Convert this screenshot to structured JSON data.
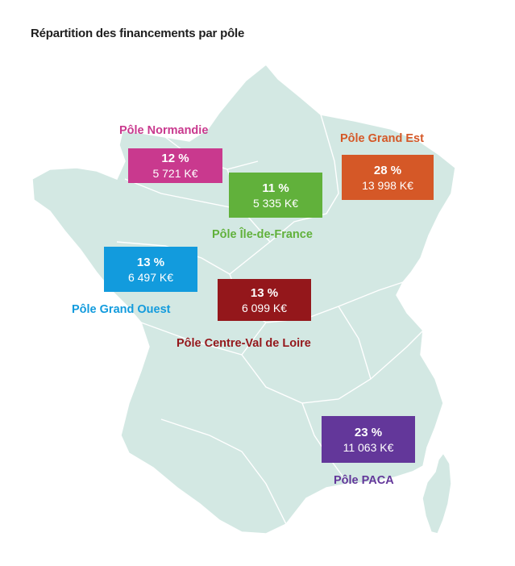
{
  "title": "Répartition des financements par pôle",
  "colors": {
    "map_fill": "#d3e8e3",
    "map_border": "#ffffff",
    "normandie": "#c9398e",
    "idf": "#61b13b",
    "grand_est": "#d55827",
    "grand_ouest": "#129bdd",
    "centre": "#94171b",
    "paca": "#63379a"
  },
  "poles": {
    "normandie": {
      "name": "Pôle Normandie",
      "percent": "12 %",
      "amount": "5 721 K€"
    },
    "idf": {
      "name": "Pôle Île-de-France",
      "percent": "11 %",
      "amount": "5 335 K€"
    },
    "grand_est": {
      "name": "Pôle Grand Est",
      "percent": "28 %",
      "amount": "13 998 K€"
    },
    "grand_ouest": {
      "name": "Pôle Grand Ouest",
      "percent": "13 %",
      "amount": "6 497 K€"
    },
    "centre": {
      "name": "Pôle Centre-Val de Loire",
      "percent": "13 %",
      "amount": "6 099 K€"
    },
    "paca": {
      "name": "Pôle PACA",
      "percent": "23 %",
      "amount": "11 063 K€"
    }
  }
}
